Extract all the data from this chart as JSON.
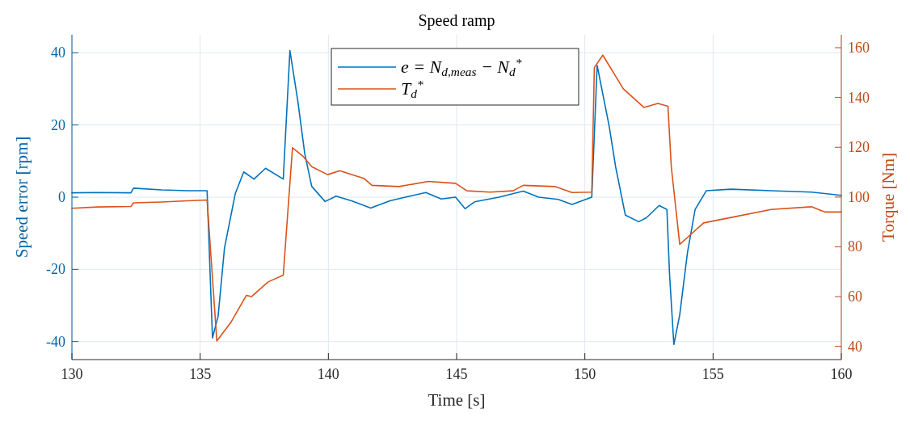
{
  "chart_data": {
    "type": "line",
    "title": "Speed ramp",
    "xlabel": "Time [s]",
    "ylabel": "Speed error [rpm]",
    "y2label": "Torque [Nm]",
    "xlim": [
      130,
      160
    ],
    "xticks": [
      130,
      135,
      140,
      145,
      150,
      155,
      160
    ],
    "ylim": [
      -45,
      45
    ],
    "yticks": [
      -40,
      -20,
      0,
      20,
      40
    ],
    "y2lim": [
      34.7,
      165.2
    ],
    "y2ticks": [
      40,
      60,
      80,
      100,
      120,
      140,
      160
    ],
    "grid": true,
    "legend": "top",
    "line_style": "solid",
    "marker": "none",
    "series": [
      {
        "name": "e = N$_{d,meas}$ − N$_{d}$$^{*}$",
        "color": "#0072bd",
        "x": [
          130,
          131,
          132.3,
          132.4,
          133.5,
          134.5,
          135.27,
          135.48,
          135.7,
          135.95,
          136.37,
          136.7,
          137.1,
          137.55,
          138.24,
          138.5,
          138.8,
          139.08,
          139.35,
          139.87,
          140.3,
          140.9,
          141.65,
          142.4,
          143,
          143.8,
          144.4,
          144.96,
          145.33,
          145.7,
          146.65,
          147.6,
          148.2,
          148.96,
          149.5,
          150.27,
          150.48,
          150.95,
          151.2,
          151.58,
          152.1,
          152.4,
          152.9,
          153.2,
          153.3,
          153.47,
          153.7,
          154,
          154.3,
          154.74,
          155.7,
          157.26,
          158.84,
          160
        ],
        "values": [
          1.2,
          1.3,
          1.2,
          2.5,
          2.0,
          1.8,
          1.8,
          -39,
          -33,
          -14,
          1,
          7,
          5,
          8,
          5,
          40.6,
          27,
          12,
          3,
          -1.2,
          0.3,
          -1,
          -3,
          -1,
          0,
          1.3,
          -0.5,
          0,
          -3.2,
          -1.3,
          0,
          1.7,
          0,
          -0.6,
          -2,
          0,
          36.5,
          19.6,
          8.4,
          -5,
          -6.8,
          -5.7,
          -2.3,
          -3.4,
          -21,
          -40.8,
          -32.6,
          -15.4,
          -3.4,
          1.8,
          2.2,
          1.8,
          1.4,
          0.5
        ]
      },
      {
        "name": "T$_{d}$$^{*}$",
        "color": "#d95319",
        "axis": "y2",
        "x": [
          130,
          131,
          132.3,
          132.4,
          133.5,
          134.5,
          135.27,
          135.65,
          136.2,
          136.8,
          137.0,
          137.65,
          138.24,
          138.6,
          139.0,
          139.35,
          139.97,
          140.44,
          141.4,
          141.7,
          142.75,
          143.9,
          144.96,
          145.4,
          146.3,
          147.2,
          147.6,
          148.85,
          149.5,
          150.27,
          150.37,
          150.7,
          151.5,
          152.3,
          152.85,
          153.24,
          153.37,
          153.7,
          154.1,
          154.63,
          155.7,
          157.26,
          158.84,
          159.36,
          160
        ],
        "values": [
          95.5,
          96,
          96.2,
          97.7,
          98,
          98.5,
          98.8,
          42.2,
          49.7,
          60.5,
          60,
          65.9,
          68.6,
          119.8,
          116.5,
          112.2,
          109,
          110.6,
          107.4,
          104.7,
          104.2,
          106.3,
          105.5,
          102.5,
          102,
          102.5,
          104.7,
          104.2,
          101.8,
          102,
          152,
          157,
          143.5,
          136,
          137.6,
          136.5,
          112.2,
          81,
          84.7,
          89.6,
          91.8,
          95,
          96.1,
          94,
          94
        ]
      }
    ]
  }
}
